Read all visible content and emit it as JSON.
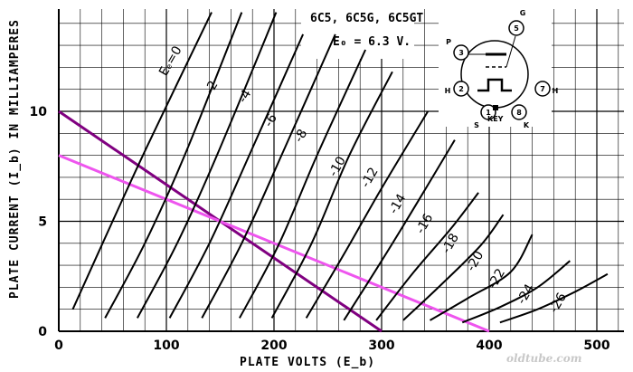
{
  "chart_data": {
    "type": "line",
    "title": "6C5, 6C5G, 6C5GT",
    "subtitle": "E₀ = 6.3 V.",
    "xlabel": "PLATE VOLTS (E_b)",
    "ylabel": "PLATE CURRENT (I_b) IN MILLIAMPERES",
    "xlim": [
      0,
      525
    ],
    "ylim": [
      0,
      14.5
    ],
    "x_ticks": [
      "0",
      "100",
      "200",
      "300",
      "400",
      "500"
    ],
    "y_ticks": [
      "0",
      "5",
      "10"
    ],
    "grid": true,
    "family_parameter": "E_c",
    "series": [
      {
        "name": "E_c=0",
        "points": [
          [
            13,
            1
          ],
          [
            50,
            5
          ],
          [
            83,
            8.5
          ],
          [
            142,
            14.5
          ]
        ]
      },
      {
        "name": "-2",
        "points": [
          [
            43,
            0.6
          ],
          [
            80,
            4
          ],
          [
            117,
            8
          ],
          [
            170,
            14.5
          ]
        ]
      },
      {
        "name": "-4",
        "points": [
          [
            73,
            0.6
          ],
          [
            110,
            4
          ],
          [
            147,
            8
          ],
          [
            202,
            14.5
          ]
        ]
      },
      {
        "name": "-6",
        "points": [
          [
            103,
            0.6
          ],
          [
            140,
            4
          ],
          [
            177,
            8
          ],
          [
            227,
            13.5
          ]
        ]
      },
      {
        "name": "-8",
        "points": [
          [
            133,
            0.6
          ],
          [
            170,
            4
          ],
          [
            207,
            8
          ],
          [
            257,
            13.5
          ]
        ]
      },
      {
        "name": "-10",
        "points": [
          [
            168,
            0.6
          ],
          [
            205,
            4
          ],
          [
            240,
            8
          ],
          [
            285,
            12.8
          ]
        ]
      },
      {
        "name": "-12",
        "points": [
          [
            198,
            0.6
          ],
          [
            235,
            4
          ],
          [
            270,
            8
          ],
          [
            310,
            11.8
          ]
        ]
      },
      {
        "name": "-14",
        "points": [
          [
            230,
            0.6
          ],
          [
            265,
            3.5
          ],
          [
            300,
            6.5
          ],
          [
            343,
            10
          ]
        ]
      },
      {
        "name": "-16",
        "points": [
          [
            265,
            0.5
          ],
          [
            300,
            3.2
          ],
          [
            335,
            6
          ],
          [
            368,
            8.7
          ]
        ]
      },
      {
        "name": "-18",
        "points": [
          [
            295,
            0.5
          ],
          [
            330,
            2.7
          ],
          [
            365,
            4.7
          ],
          [
            390,
            6.3
          ]
        ]
      },
      {
        "name": "-20",
        "points": [
          [
            320,
            0.5
          ],
          [
            355,
            2.1
          ],
          [
            392,
            3.9
          ],
          [
            413,
            5.3
          ]
        ]
      },
      {
        "name": "-22",
        "points": [
          [
            345,
            0.5
          ],
          [
            380,
            1.5
          ],
          [
            420,
            2.7
          ],
          [
            440,
            4.4
          ]
        ]
      },
      {
        "name": "-24",
        "points": [
          [
            375,
            0.4
          ],
          [
            410,
            1.1
          ],
          [
            445,
            2
          ],
          [
            475,
            3.2
          ]
        ]
      },
      {
        "name": "-26",
        "points": [
          [
            410,
            0.4
          ],
          [
            445,
            1
          ],
          [
            480,
            1.8
          ],
          [
            510,
            2.6
          ]
        ]
      }
    ],
    "load_lines": [
      {
        "points": [
          [
            0,
            10
          ],
          [
            300,
            0
          ]
        ],
        "color": "#800080"
      },
      {
        "points": [
          [
            0,
            8
          ],
          [
            400,
            0
          ]
        ],
        "color": "#ee55ee"
      }
    ],
    "curve_labels": [
      "Eₑ=0",
      "-2",
      "-4",
      "-6",
      "-8",
      "-10",
      "-12",
      "-14",
      "-16",
      "-18",
      "-20",
      "-22",
      "-24",
      "-26"
    ],
    "tube_diagram": {
      "pins": [
        "1",
        "2",
        "3",
        "5",
        "7",
        "8"
      ],
      "pin_letters": [
        "S",
        "H",
        "P",
        "G",
        "H",
        "K"
      ],
      "key_label": "KEY"
    },
    "watermark": "oldtube.com"
  }
}
